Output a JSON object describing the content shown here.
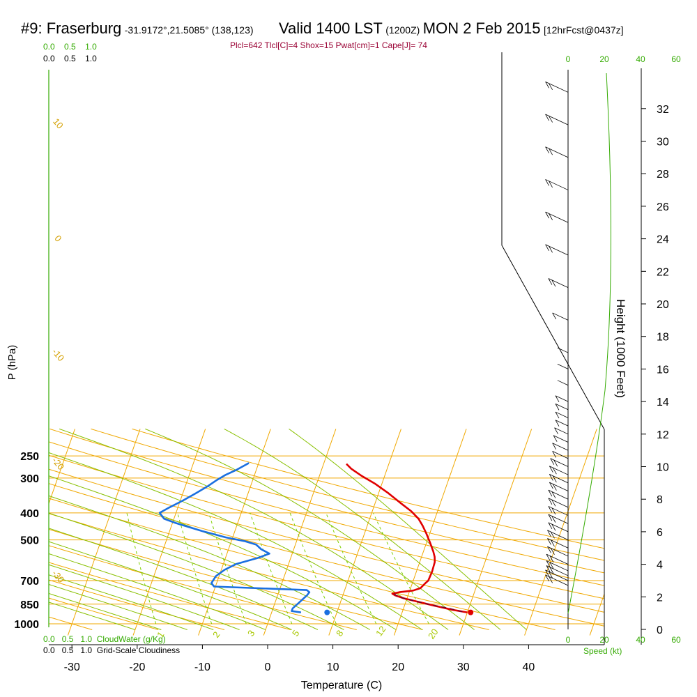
{
  "header": {
    "station": "#9: Fraserburg",
    "coords": "-31.9172°,21.5085° (138,123)",
    "valid": "Valid 1400 LST",
    "z": "(1200Z)",
    "date": "MON 2 Feb 2015",
    "fcst": "[12hrFcst@0437z]"
  },
  "indices_line": "Plcl=642 Tlcl[C]=4 Shox=15 Pwat[cm]=1 Cape[J]= 74",
  "cloud": {
    "water_label": "CloudWater (g/Kg)",
    "cloudiness_label": "Grid-Scale Cloudiness",
    "scale": [
      "0.0",
      "0.5",
      "1.0"
    ]
  },
  "speed": {
    "label": "Speed (kt)",
    "ticks": [
      "0",
      "20",
      "40",
      "60"
    ]
  },
  "colors": {
    "temperature": "#e00000",
    "dewpoint": "#1a6fe0",
    "isotherm": "#f0a800",
    "dry_adiabat": "#f0a800",
    "moist_adiabat": "#88c000",
    "mixing_ratio": "#7fd000",
    "parcel": "#660033",
    "green_text": "#33aa00"
  },
  "chart_data": {
    "type": "line",
    "title": "#9: Fraserburg Valid 1400 LST (1200Z) MON 2 Feb 2015",
    "xlabel": "Temperature (C)",
    "ylabel": "P (hPa)",
    "y2label": "Height (1000 Feet)",
    "x_ticks": [
      -30,
      -20,
      -10,
      0,
      10,
      20,
      30,
      40
    ],
    "p_ticks": [
      250,
      300,
      400,
      500,
      700,
      850,
      1000
    ],
    "height_ticks": [
      0,
      2,
      4,
      6,
      8,
      10,
      12,
      14,
      16,
      18,
      20,
      22,
      24,
      26,
      28,
      30,
      32
    ],
    "dry_adiabat_labels": [
      "10",
      "0",
      "-10",
      "-20",
      "-30"
    ],
    "moist_adiabat_labels": [
      "0",
      "10",
      "20",
      "30"
    ],
    "mixing_ratio_labels": [
      "1",
      "2",
      "3",
      "5",
      "8",
      "12",
      "20"
    ],
    "series": [
      {
        "name": "Temperature",
        "points": [
          [
            30.0,
            910
          ],
          [
            27.5,
            890
          ],
          [
            24.5,
            860
          ],
          [
            21.5,
            830
          ],
          [
            19.5,
            810
          ],
          [
            18.0,
            790
          ],
          [
            17.5,
            780
          ],
          [
            18.5,
            770
          ],
          [
            20.5,
            760
          ],
          [
            21.5,
            745
          ],
          [
            22.0,
            715
          ],
          [
            22.3,
            700
          ],
          [
            22.4,
            650
          ],
          [
            22.3,
            600
          ],
          [
            22.0,
            575
          ],
          [
            21.5,
            550
          ],
          [
            20.5,
            510
          ],
          [
            19.5,
            475
          ],
          [
            18.5,
            445
          ],
          [
            17.5,
            420
          ],
          [
            16.0,
            395
          ],
          [
            14.0,
            370
          ],
          [
            11.5,
            340
          ],
          [
            9.0,
            315
          ],
          [
            6.5,
            295
          ],
          [
            4.5,
            278
          ],
          [
            3.5,
            267
          ]
        ]
      },
      {
        "name": "Dewpoint",
        "points": [
          [
            4.5,
            910
          ],
          [
            3.0,
            900
          ],
          [
            3.0,
            880
          ],
          [
            3.5,
            850
          ],
          [
            4.0,
            820
          ],
          [
            4.5,
            790
          ],
          [
            4.7,
            770
          ],
          [
            4.2,
            757
          ],
          [
            -10.2,
            735
          ],
          [
            -10.8,
            715
          ],
          [
            -10.5,
            675
          ],
          [
            -9.5,
            640
          ],
          [
            -8.0,
            610
          ],
          [
            -5.0,
            580
          ],
          [
            -3.5,
            560
          ],
          [
            -5.0,
            540
          ],
          [
            -6.0,
            520
          ],
          [
            -8.0,
            505
          ],
          [
            -11.0,
            490
          ],
          [
            -15.0,
            465
          ],
          [
            -19.5,
            435
          ],
          [
            -21.5,
            420
          ],
          [
            -22.5,
            400
          ],
          [
            -21.5,
            385
          ],
          [
            -19.5,
            360
          ],
          [
            -18.0,
            340
          ],
          [
            -16.5,
            320
          ],
          [
            -15.5,
            305
          ],
          [
            -14.5,
            293
          ],
          [
            -13.0,
            280
          ],
          [
            -12.0,
            270
          ],
          [
            -11.5,
            265
          ]
        ]
      },
      {
        "name": "Parcel",
        "points": [
          [
            29.2,
            905
          ],
          [
            27.0,
            880
          ],
          [
            23.5,
            850
          ],
          [
            20.5,
            820
          ],
          [
            18.5,
            800
          ],
          [
            17.8,
            780
          ]
        ]
      }
    ],
    "surface_temperature": 30.5,
    "surface_dewpoint": 8.5,
    "wind_barbs": {
      "height_kft": [
        2.7,
        3.0,
        3.3,
        3.6,
        4.0,
        4.5,
        5.0,
        5.5,
        6.0,
        6.5,
        7.0,
        7.5,
        8.0,
        8.5,
        9.0,
        9.5,
        10.0,
        10.5,
        11.0,
        11.5,
        12.0,
        12.5,
        13.0,
        13.5,
        14.0,
        15.0,
        16.0,
        17.0,
        19.0,
        21.0,
        23.0,
        25.0,
        27.0,
        29.0,
        31.0,
        33.0
      ],
      "speed_kt": [
        15,
        15,
        14,
        14,
        14,
        13,
        13,
        13,
        12,
        12,
        12,
        12,
        12,
        11,
        11,
        11,
        10,
        8,
        8,
        7,
        6,
        5,
        5,
        5,
        5,
        3,
        3,
        3,
        8,
        12,
        15,
        15,
        15,
        15,
        15,
        15
      ]
    }
  }
}
